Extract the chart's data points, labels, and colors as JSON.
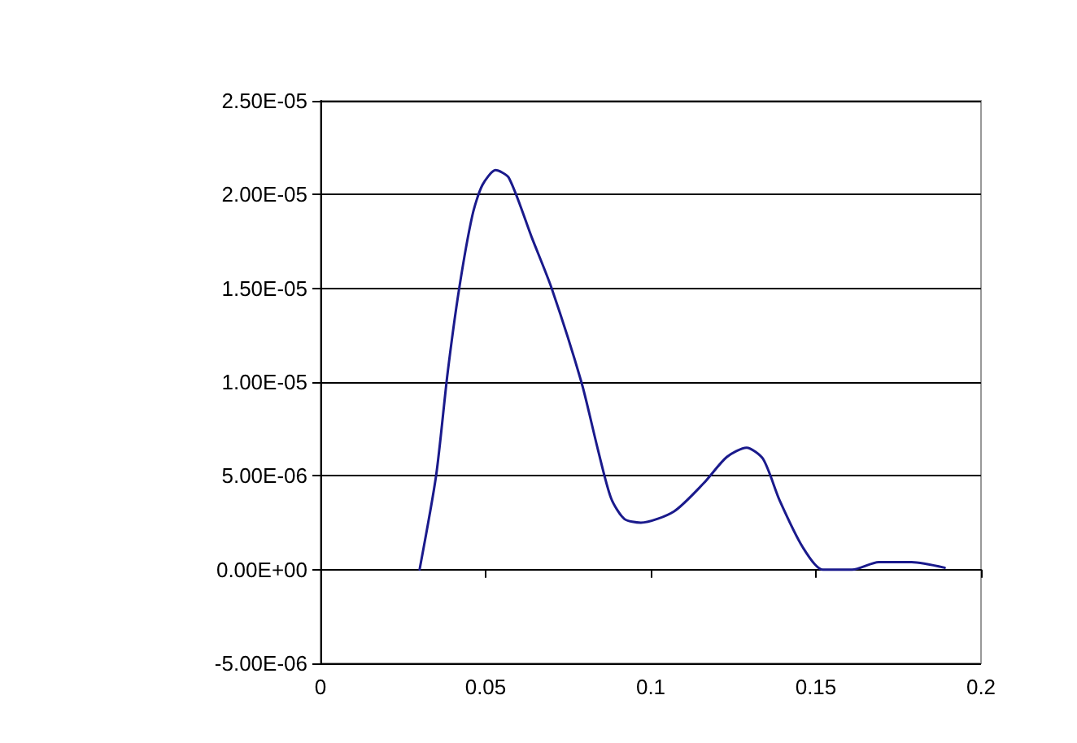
{
  "chart_data": {
    "type": "line",
    "x": [
      0.03,
      0.035,
      0.0385,
      0.042,
      0.046,
      0.049,
      0.053,
      0.057,
      0.064,
      0.07,
      0.079,
      0.084,
      0.088,
      0.092,
      0.097,
      0.107,
      0.116,
      0.123,
      0.129,
      0.134,
      0.139,
      0.146,
      0.152,
      0.161,
      0.169,
      0.179,
      0.189
    ],
    "series": [
      {
        "color": "#1a1a8c",
        "values": [
          0,
          5e-06,
          1.05e-05,
          1.5e-05,
          1.89e-05,
          2.05e-05,
          2.13e-05,
          2.09e-05,
          1.77e-05,
          1.5e-05,
          1e-05,
          6.4e-06,
          3.8e-06,
          2.7e-06,
          2.5e-06,
          3.1e-06,
          4.6e-06,
          6e-06,
          6.5e-06,
          5.9e-06,
          3.7e-06,
          1.2e-06,
          0,
          0,
          4e-07,
          4e-07,
          1e-07
        ]
      }
    ],
    "xlim": [
      0,
      0.2
    ],
    "xticks": [
      0,
      0.05,
      0.1,
      0.15,
      0.2
    ],
    "ylim": [
      -5e-06,
      2.5e-05
    ],
    "yticks": [
      {
        "value": -5e-06,
        "label": "-5.00E-06"
      },
      {
        "value": 0,
        "label": "0.00E+00"
      },
      {
        "value": 5e-06,
        "label": "5.00E-06"
      },
      {
        "value": 1e-05,
        "label": "1.00E-05"
      },
      {
        "value": 1.5e-05,
        "label": "1.50E-05"
      },
      {
        "value": 2e-05,
        "label": "2.00E-05"
      },
      {
        "value": 2.5e-05,
        "label": "2.50E-05"
      }
    ],
    "grid": "y",
    "marker": "none",
    "line_style": "solid"
  }
}
